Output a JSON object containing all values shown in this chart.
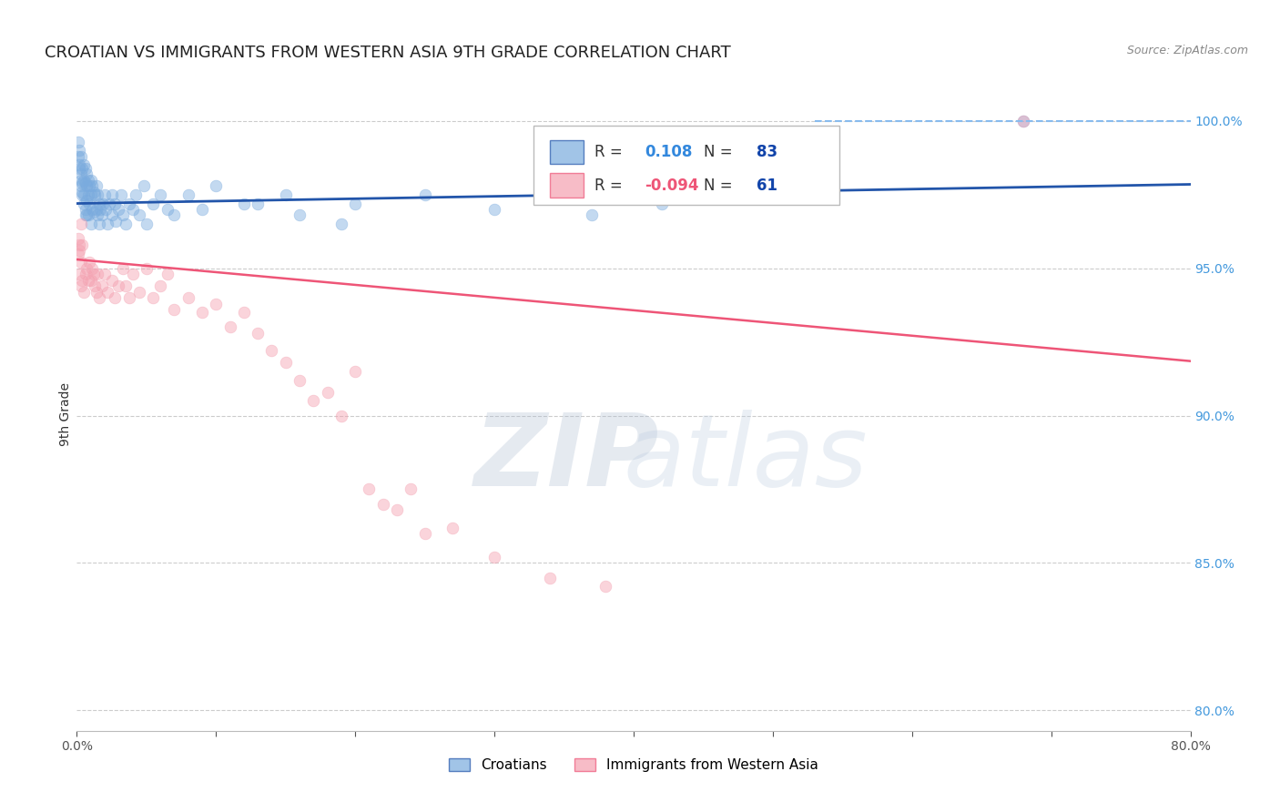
{
  "title": "CROATIAN VS IMMIGRANTS FROM WESTERN ASIA 9TH GRADE CORRELATION CHART",
  "source": "Source: ZipAtlas.com",
  "ylabel": "9th Grade",
  "xlim": [
    0.0,
    0.8
  ],
  "ylim": [
    0.793,
    1.008
  ],
  "xticks": [
    0.0,
    0.1,
    0.2,
    0.3,
    0.4,
    0.5,
    0.6,
    0.7,
    0.8
  ],
  "xticklabels": [
    "0.0%",
    "",
    "",
    "",
    "",
    "",
    "",
    "",
    "80.0%"
  ],
  "yticks_right": [
    0.8,
    0.85,
    0.9,
    0.95,
    1.0
  ],
  "yticklabels_right": [
    "80.0%",
    "85.0%",
    "90.0%",
    "95.0%",
    "100.0%"
  ],
  "legend_R1": "0.108",
  "legend_N1": "83",
  "legend_R2": "-0.094",
  "legend_N2": "61",
  "blue_color": "#7AABDE",
  "pink_color": "#F4A0B0",
  "blue_line_color": "#2255AA",
  "pink_line_color": "#EE5577",
  "dashed_line_color": "#88BBEE",
  "grid_color": "#CCCCCC",
  "background_color": "#FFFFFF",
  "title_fontsize": 13,
  "axis_label_fontsize": 10,
  "tick_fontsize": 10,
  "right_tick_color": "#4499DD",
  "marker_size": 85,
  "marker_alpha": 0.45,
  "legend_fontsize": 12,
  "legend_R_color": "#3388DD",
  "legend_N_color": "#1144AA",
  "blue_trend_x": [
    0.0,
    0.8
  ],
  "blue_trend_y": [
    0.972,
    0.9785
  ],
  "pink_trend_x": [
    0.0,
    0.8
  ],
  "pink_trend_y": [
    0.953,
    0.9185
  ],
  "dashed_line_x": [
    0.53,
    0.82
  ],
  "dashed_line_y": [
    1.0,
    1.0
  ],
  "blue_x": [
    0.001,
    0.002,
    0.002,
    0.003,
    0.003,
    0.003,
    0.004,
    0.004,
    0.004,
    0.005,
    0.005,
    0.005,
    0.006,
    0.006,
    0.006,
    0.007,
    0.007,
    0.007,
    0.007,
    0.008,
    0.008,
    0.008,
    0.009,
    0.009,
    0.01,
    0.01,
    0.01,
    0.011,
    0.011,
    0.012,
    0.012,
    0.013,
    0.014,
    0.014,
    0.015,
    0.015,
    0.016,
    0.016,
    0.017,
    0.018,
    0.019,
    0.02,
    0.021,
    0.022,
    0.023,
    0.025,
    0.025,
    0.027,
    0.028,
    0.03,
    0.032,
    0.033,
    0.035,
    0.038,
    0.04,
    0.042,
    0.045,
    0.048,
    0.05,
    0.055,
    0.06,
    0.065,
    0.07,
    0.08,
    0.09,
    0.1,
    0.12,
    0.15,
    0.2,
    0.25,
    0.3,
    0.37,
    0.42,
    0.001,
    0.002,
    0.003,
    0.004,
    0.005,
    0.006,
    0.68,
    0.13,
    0.16,
    0.19
  ],
  "blue_y": [
    0.993,
    0.99,
    0.985,
    0.988,
    0.982,
    0.978,
    0.984,
    0.979,
    0.975,
    0.985,
    0.98,
    0.975,
    0.984,
    0.979,
    0.97,
    0.982,
    0.978,
    0.973,
    0.968,
    0.98,
    0.975,
    0.968,
    0.978,
    0.972,
    0.98,
    0.975,
    0.965,
    0.978,
    0.97,
    0.976,
    0.969,
    0.975,
    0.978,
    0.97,
    0.975,
    0.968,
    0.972,
    0.965,
    0.97,
    0.968,
    0.972,
    0.975,
    0.97,
    0.965,
    0.972,
    0.975,
    0.968,
    0.972,
    0.966,
    0.97,
    0.975,
    0.968,
    0.965,
    0.972,
    0.97,
    0.975,
    0.968,
    0.978,
    0.965,
    0.972,
    0.975,
    0.97,
    0.968,
    0.975,
    0.97,
    0.978,
    0.972,
    0.975,
    0.972,
    0.975,
    0.97,
    0.968,
    0.972,
    0.988,
    0.984,
    0.98,
    0.976,
    0.972,
    0.968,
    1.0,
    0.972,
    0.968,
    0.965
  ],
  "pink_x": [
    0.001,
    0.002,
    0.002,
    0.003,
    0.003,
    0.004,
    0.004,
    0.005,
    0.006,
    0.007,
    0.008,
    0.009,
    0.01,
    0.011,
    0.012,
    0.013,
    0.014,
    0.015,
    0.016,
    0.018,
    0.02,
    0.022,
    0.025,
    0.027,
    0.03,
    0.033,
    0.035,
    0.038,
    0.04,
    0.045,
    0.05,
    0.055,
    0.06,
    0.065,
    0.07,
    0.08,
    0.09,
    0.1,
    0.11,
    0.12,
    0.13,
    0.14,
    0.15,
    0.16,
    0.17,
    0.18,
    0.19,
    0.2,
    0.21,
    0.22,
    0.23,
    0.24,
    0.25,
    0.27,
    0.3,
    0.34,
    0.001,
    0.002,
    0.003,
    0.38,
    0.68
  ],
  "pink_y": [
    0.955,
    0.958,
    0.948,
    0.952,
    0.944,
    0.958,
    0.946,
    0.942,
    0.948,
    0.95,
    0.946,
    0.952,
    0.946,
    0.95,
    0.948,
    0.944,
    0.942,
    0.948,
    0.94,
    0.944,
    0.948,
    0.942,
    0.946,
    0.94,
    0.944,
    0.95,
    0.944,
    0.94,
    0.948,
    0.942,
    0.95,
    0.94,
    0.944,
    0.948,
    0.936,
    0.94,
    0.935,
    0.938,
    0.93,
    0.935,
    0.928,
    0.922,
    0.918,
    0.912,
    0.905,
    0.908,
    0.9,
    0.915,
    0.875,
    0.87,
    0.868,
    0.875,
    0.86,
    0.862,
    0.852,
    0.845,
    0.96,
    0.956,
    0.965,
    0.842,
    1.0
  ]
}
